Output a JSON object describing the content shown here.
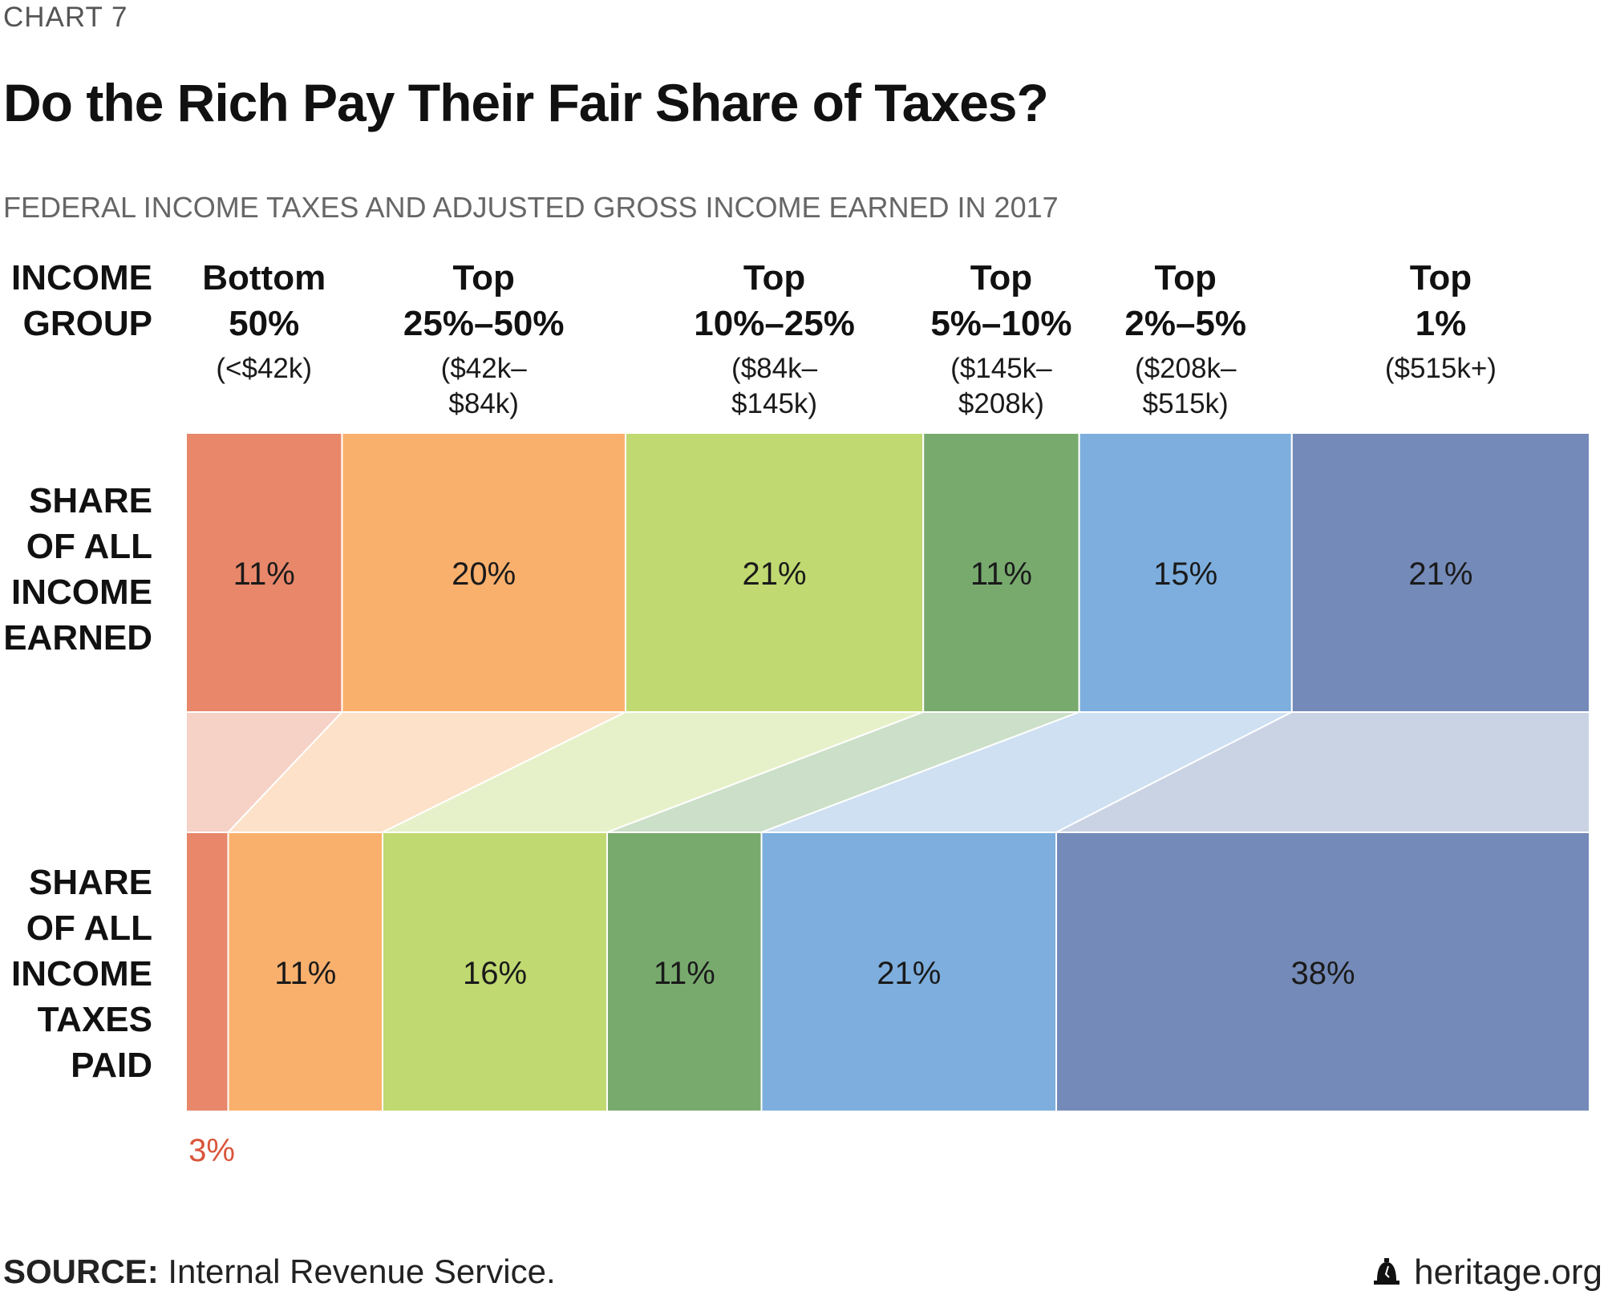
{
  "kicker": "CHART 7",
  "title": "Do the Rich Pay Their Fair Share of Taxes?",
  "subtitle": "FEDERAL INCOME TAXES AND ADJUSTED GROSS INCOME EARNED IN 2017",
  "row_labels": {
    "group": "INCOME\nGROUP",
    "income": "SHARE\nOF ALL\nINCOME\nEARNED",
    "taxes": "SHARE\nOF ALL\nINCOME\nTAXES\nPAID"
  },
  "source": {
    "label": "SOURCE:",
    "text": " Internal Revenue Service."
  },
  "brand": {
    "text": "heritage.org",
    "icon": "liberty-bell-icon"
  },
  "chart_data": {
    "type": "bar",
    "layout": "stacked-horizontal-100",
    "categories": [
      "Bottom 50%",
      "Top 25%–50%",
      "Top 10%–25%",
      "Top 5%–10%",
      "Top 2%–5%",
      "Top 1%"
    ],
    "category_headers": [
      {
        "name": "Bottom\n50%",
        "range": "(<$42k)"
      },
      {
        "name": "Top\n25%–50%",
        "range": "($42k–\n$84k)"
      },
      {
        "name": "Top\n10%–25%",
        "range": "($84k–\n$145k)"
      },
      {
        "name": "Top\n5%–10%",
        "range": "($145k–\n$208k)"
      },
      {
        "name": "Top\n2%–5%",
        "range": "($208k–\n$515k)"
      },
      {
        "name": "Top\n1%",
        "range": "($515k+)"
      }
    ],
    "colors": [
      "#e8876a",
      "#fab06d",
      "#c0d971",
      "#78aa6e",
      "#7daedd",
      "#748ab8"
    ],
    "series": [
      {
        "name": "SHARE OF ALL INCOME EARNED",
        "values": [
          11,
          20,
          21,
          11,
          15,
          21
        ],
        "labels": [
          "11%",
          "20%",
          "21%",
          "11%",
          "15%",
          "21%"
        ]
      },
      {
        "name": "SHARE OF ALL INCOME TAXES PAID",
        "values": [
          3,
          11,
          16,
          11,
          21,
          38
        ],
        "labels": [
          "3%",
          "11%",
          "16%",
          "11%",
          "21%",
          "38%"
        ]
      }
    ],
    "unit": "%"
  }
}
